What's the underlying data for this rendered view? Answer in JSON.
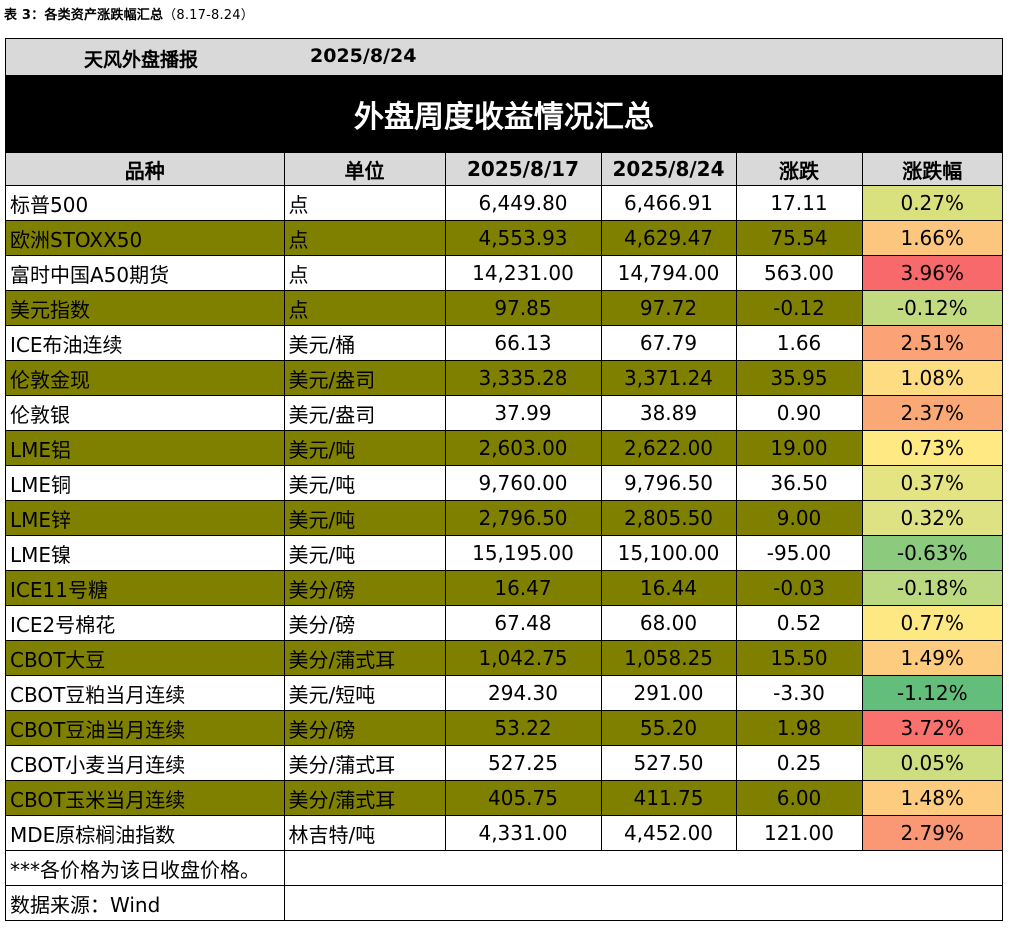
{
  "caption": {
    "label": "表 3：各类资产涨跌幅汇总",
    "range": "（8.17-8.24）"
  },
  "header": {
    "name": "天风外盘播报",
    "date": "2025/8/24",
    "title": "外盘周度收益情况汇总"
  },
  "columns": [
    "品种",
    "单位",
    "2025/8/17",
    "2025/8/24",
    "涨跌",
    "涨跌幅"
  ],
  "rows": [
    {
      "name": "标普500",
      "unit": "点",
      "v1": "6,449.80",
      "v2": "6,466.91",
      "chg": "17.11",
      "pct": "0.27%",
      "pct_color": "#d8e17e"
    },
    {
      "name": "欧洲STOXX50",
      "unit": "点",
      "v1": "4,553.93",
      "v2": "4,629.47",
      "chg": "75.54",
      "pct": "1.66%",
      "pct_color": "#fdc67e"
    },
    {
      "name": "富时中国A50期货",
      "unit": "点",
      "v1": "14,231.00",
      "v2": "14,794.00",
      "chg": "563.00",
      "pct": "3.96%",
      "pct_color": "#f8696b"
    },
    {
      "name": "美元指数",
      "unit": "点",
      "v1": "97.85",
      "v2": "97.72",
      "chg": "-0.12",
      "pct": "-0.12%",
      "pct_color": "#c2db80"
    },
    {
      "name": "ICE布油连续",
      "unit": "美元/桶",
      "v1": "66.13",
      "v2": "67.79",
      "chg": "1.66",
      "pct": "2.51%",
      "pct_color": "#fba276"
    },
    {
      "name": "伦敦金现",
      "unit": "美元/盎司",
      "v1": "3,335.28",
      "v2": "3,371.24",
      "chg": "35.95",
      "pct": "1.08%",
      "pct_color": "#fedc81"
    },
    {
      "name": "伦敦银",
      "unit": "美元/盎司",
      "v1": "37.99",
      "v2": "38.89",
      "chg": "0.90",
      "pct": "2.37%",
      "pct_color": "#fba877"
    },
    {
      "name": "LME铝",
      "unit": "美元/吨",
      "v1": "2,603.00",
      "v2": "2,622.00",
      "chg": "19.00",
      "pct": "0.73%",
      "pct_color": "#fee983"
    },
    {
      "name": "LME铜",
      "unit": "美元/吨",
      "v1": "9,760.00",
      "v2": "9,796.50",
      "chg": "36.50",
      "pct": "0.37%",
      "pct_color": "#e5e483"
    },
    {
      "name": "LME锌",
      "unit": "美元/吨",
      "v1": "2,796.50",
      "v2": "2,805.50",
      "chg": "9.00",
      "pct": "0.32%",
      "pct_color": "#dfe282"
    },
    {
      "name": "LME镍",
      "unit": "美元/吨",
      "v1": "15,195.00",
      "v2": "15,100.00",
      "chg": "-95.00",
      "pct": "-0.63%",
      "pct_color": "#8ccb7e"
    },
    {
      "name": "ICE11号糖",
      "unit": "美分/磅",
      "v1": "16.47",
      "v2": "16.44",
      "chg": "-0.03",
      "pct": "-0.18%",
      "pct_color": "#bbd980"
    },
    {
      "name": "ICE2号棉花",
      "unit": "美分/磅",
      "v1": "67.48",
      "v2": "68.00",
      "chg": "0.52",
      "pct": "0.77%",
      "pct_color": "#fee883"
    },
    {
      "name": "CBOT大豆",
      "unit": "美分/蒲式耳",
      "v1": "1,042.75",
      "v2": "1,058.25",
      "chg": "15.50",
      "pct": "1.49%",
      "pct_color": "#fdcc7f"
    },
    {
      "name": "CBOT豆粕当月连续",
      "unit": "美元/短吨",
      "v1": "294.30",
      "v2": "291.00",
      "chg": "-3.30",
      "pct": "-1.12%",
      "pct_color": "#63be7b"
    },
    {
      "name": "CBOT豆油当月连续",
      "unit": "美分/磅",
      "v1": "53.22",
      "v2": "55.20",
      "chg": "1.98",
      "pct": "3.72%",
      "pct_color": "#f9726d"
    },
    {
      "name": "CBOT小麦当月连续",
      "unit": "美分/蒲式耳",
      "v1": "527.25",
      "v2": "527.50",
      "chg": "0.25",
      "pct": "0.05%",
      "pct_color": "#cdde81"
    },
    {
      "name": "CBOT玉米当月连续",
      "unit": "美分/蒲式耳",
      "v1": "405.75",
      "v2": "411.75",
      "chg": "6.00",
      "pct": "1.48%",
      "pct_color": "#fdcc7f"
    },
    {
      "name": "MDE原棕榈油指数",
      "unit": "林吉特/吨",
      "v1": "4,331.00",
      "v2": "4,452.00",
      "chg": "121.00",
      "pct": "2.79%",
      "pct_color": "#fa9774"
    }
  ],
  "notes": [
    "***各价格为该日收盘价格。",
    "数据来源：Wind"
  ]
}
